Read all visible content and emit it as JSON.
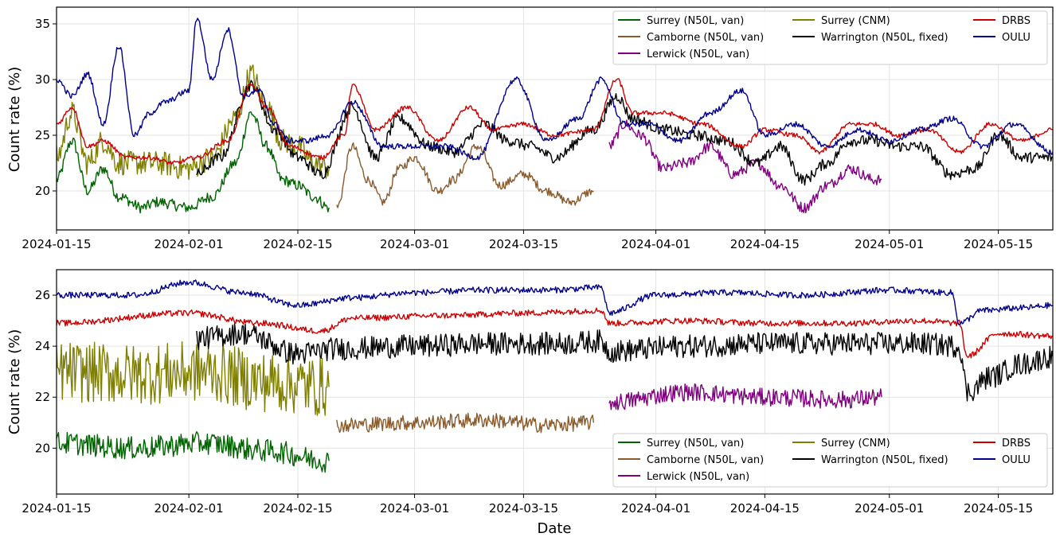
{
  "figure": {
    "xlabel": "Date"
  },
  "chart_data": [
    {
      "type": "line",
      "ylabel": "Count rate (%)",
      "xlim": [
        "2024-01-15",
        "2024-05-22"
      ],
      "ylim": [
        16.5,
        36.5
      ],
      "x_ticks": [
        "2024-01-15",
        "2024-02-01",
        "2024-02-15",
        "2024-03-01",
        "2024-03-15",
        "2024-04-01",
        "2024-04-15",
        "2024-05-01",
        "2024-05-15"
      ],
      "y_ticks": [
        20,
        25,
        30,
        35
      ],
      "grid": true,
      "legend_position": "top-right",
      "series": [
        {
          "name": "Surrey (N50L, van)",
          "color": "#006400",
          "noise": 0.5,
          "x": [
            "2024-01-15",
            "2024-01-17",
            "2024-01-19",
            "2024-01-21",
            "2024-01-23",
            "2024-01-26",
            "2024-01-28",
            "2024-02-01",
            "2024-02-04",
            "2024-02-07",
            "2024-02-09",
            "2024-02-11",
            "2024-02-13",
            "2024-02-15",
            "2024-02-17",
            "2024-02-19"
          ],
          "y": [
            21,
            24.5,
            20,
            22,
            19.5,
            18.5,
            19,
            18.5,
            19.5,
            22.5,
            27,
            24,
            21,
            20.5,
            19.5,
            18.5
          ]
        },
        {
          "name": "Camborne (N50L, van)",
          "color": "#8B5A2B",
          "noise": 0.4,
          "x": [
            "2024-02-20",
            "2024-02-22",
            "2024-02-24",
            "2024-02-26",
            "2024-02-28",
            "2024-03-01",
            "2024-03-04",
            "2024-03-06",
            "2024-03-09",
            "2024-03-12",
            "2024-03-15",
            "2024-03-18",
            "2024-03-21",
            "2024-03-24"
          ],
          "y": [
            18.5,
            24,
            21,
            19,
            22,
            23,
            20,
            21,
            24,
            20.5,
            21.5,
            20,
            19,
            20
          ]
        },
        {
          "name": "Lerwick (N50L, van)",
          "color": "#800080",
          "noise": 0.5,
          "x": [
            "2024-03-26",
            "2024-03-28",
            "2024-03-30",
            "2024-04-02",
            "2024-04-05",
            "2024-04-08",
            "2024-04-11",
            "2024-04-14",
            "2024-04-17",
            "2024-04-20",
            "2024-04-23",
            "2024-04-26",
            "2024-04-29",
            "2024-04-30"
          ],
          "y": [
            24,
            26,
            25,
            22,
            22.5,
            24,
            21.5,
            22.5,
            20.5,
            18.5,
            20.5,
            22,
            21,
            21
          ]
        },
        {
          "name": "Surrey (CNM)",
          "color": "#808000",
          "noise": 1.1,
          "x": [
            "2024-01-15",
            "2024-01-17",
            "2024-01-19",
            "2024-01-21",
            "2024-01-23",
            "2024-01-26",
            "2024-01-28",
            "2024-02-01",
            "2024-02-04",
            "2024-02-07",
            "2024-02-09",
            "2024-02-11",
            "2024-02-13",
            "2024-02-15",
            "2024-02-17",
            "2024-02-19"
          ],
          "y": [
            23,
            27,
            22.5,
            24.5,
            22.5,
            22.5,
            22.5,
            22,
            23,
            26.5,
            30.5,
            27.5,
            24.5,
            24,
            22.5,
            22
          ]
        },
        {
          "name": "Warrington (N50L, fixed)",
          "color": "#000000",
          "noise": 0.5,
          "x": [
            "2024-02-02",
            "2024-02-05",
            "2024-02-09",
            "2024-02-12",
            "2024-02-15",
            "2024-02-18",
            "2024-02-22",
            "2024-02-25",
            "2024-02-28",
            "2024-03-03",
            "2024-03-06",
            "2024-03-10",
            "2024-03-13",
            "2024-03-16",
            "2024-03-19",
            "2024-03-24",
            "2024-03-27",
            "2024-03-29",
            "2024-04-02",
            "2024-04-06",
            "2024-04-10",
            "2024-04-14",
            "2024-04-17",
            "2024-04-20",
            "2024-04-23",
            "2024-04-26",
            "2024-04-29",
            "2024-05-02",
            "2024-05-05",
            "2024-05-09",
            "2024-05-12",
            "2024-05-15",
            "2024-05-18",
            "2024-05-22"
          ],
          "y": [
            21.5,
            23,
            29.5,
            25.5,
            23,
            21.5,
            27.5,
            23,
            26.5,
            24,
            23.5,
            26,
            24.5,
            24,
            23,
            25.5,
            28.5,
            26.5,
            25.5,
            25,
            24.5,
            22.5,
            24,
            21,
            22.5,
            24.5,
            24.5,
            24,
            24,
            21.5,
            22,
            25,
            23,
            23
          ]
        },
        {
          "name": "DRBS",
          "color": "#CC0000",
          "noise": 0.2,
          "x": [
            "2024-01-15",
            "2024-01-17",
            "2024-01-19",
            "2024-01-21",
            "2024-01-24",
            "2024-01-27",
            "2024-01-30",
            "2024-02-02",
            "2024-02-06",
            "2024-02-09",
            "2024-02-11",
            "2024-02-14",
            "2024-02-18",
            "2024-02-21",
            "2024-02-22",
            "2024-02-25",
            "2024-02-29",
            "2024-03-04",
            "2024-03-08",
            "2024-03-11",
            "2024-03-15",
            "2024-03-19",
            "2024-03-24",
            "2024-03-27",
            "2024-03-29",
            "2024-04-02",
            "2024-04-07",
            "2024-04-12",
            "2024-04-15",
            "2024-04-19",
            "2024-04-22",
            "2024-04-26",
            "2024-04-29",
            "2024-05-02",
            "2024-05-06",
            "2024-05-10",
            "2024-05-14",
            "2024-05-18",
            "2024-05-22"
          ],
          "y": [
            26,
            27.5,
            24,
            24.5,
            23,
            23,
            22.5,
            23,
            24.5,
            29.5,
            27.5,
            24,
            23,
            25,
            29.5,
            25.5,
            27.5,
            24.5,
            27.5,
            25.5,
            26,
            25,
            25.5,
            30,
            27,
            27,
            26,
            24,
            25.5,
            25,
            23.5,
            26,
            26,
            25,
            25.5,
            23.5,
            26,
            24.5,
            25.5
          ]
        },
        {
          "name": "OULU",
          "color": "#00008B",
          "noise": 0.25,
          "x": [
            "2024-01-15",
            "2024-01-17",
            "2024-01-19",
            "2024-01-21",
            "2024-01-23",
            "2024-01-25",
            "2024-01-27",
            "2024-01-29",
            "2024-02-01",
            "2024-02-02",
            "2024-02-04",
            "2024-02-06",
            "2024-02-08",
            "2024-02-10",
            "2024-02-12",
            "2024-02-14",
            "2024-02-16",
            "2024-02-19",
            "2024-02-22",
            "2024-02-26",
            "2024-03-01",
            "2024-03-05",
            "2024-03-09",
            "2024-03-14",
            "2024-03-18",
            "2024-03-22",
            "2024-03-25",
            "2024-03-28",
            "2024-03-31",
            "2024-04-04",
            "2024-04-08",
            "2024-04-12",
            "2024-04-15",
            "2024-04-19",
            "2024-04-23",
            "2024-04-27",
            "2024-05-01",
            "2024-05-05",
            "2024-05-09",
            "2024-05-13",
            "2024-05-17",
            "2024-05-22"
          ],
          "y": [
            30,
            28.5,
            30.5,
            26,
            33,
            25,
            27,
            28,
            29,
            35.5,
            30,
            34.5,
            28.5,
            29,
            26,
            24.5,
            24.5,
            25,
            28,
            24,
            24,
            24,
            23,
            30,
            24.5,
            26.5,
            30,
            26,
            26,
            24.5,
            27,
            29,
            25,
            26,
            24,
            25.5,
            24.5,
            25.5,
            26.5,
            24,
            26,
            23.5
          ]
        }
      ]
    },
    {
      "type": "line",
      "ylabel": "Count rate (%)",
      "xlim": [
        "2024-01-15",
        "2024-05-22"
      ],
      "ylim": [
        18.2,
        27.0
      ],
      "x_ticks": [
        "2024-01-15",
        "2024-02-01",
        "2024-02-15",
        "2024-03-01",
        "2024-03-15",
        "2024-04-01",
        "2024-04-15",
        "2024-05-01",
        "2024-05-15"
      ],
      "y_ticks": [
        20,
        22,
        24,
        26
      ],
      "grid": true,
      "legend_position": "bottom-right",
      "series": [
        {
          "name": "Surrey (N50L, van)",
          "color": "#006400",
          "noise": 0.45,
          "x": [
            "2024-01-15",
            "2024-01-25",
            "2024-02-03",
            "2024-02-11",
            "2024-02-19"
          ],
          "y": [
            20.2,
            20.0,
            20.2,
            19.9,
            19.5
          ]
        },
        {
          "name": "Camborne (N50L, van)",
          "color": "#8B5A2B",
          "noise": 0.3,
          "x": [
            "2024-02-20",
            "2024-03-01",
            "2024-03-10",
            "2024-03-18",
            "2024-03-24"
          ],
          "y": [
            20.9,
            21.0,
            21.1,
            20.9,
            21.0
          ]
        },
        {
          "name": "Lerwick (N50L, van)",
          "color": "#800080",
          "noise": 0.35,
          "x": [
            "2024-03-26",
            "2024-04-05",
            "2024-04-15",
            "2024-04-25",
            "2024-04-30"
          ],
          "y": [
            21.8,
            22.2,
            22.0,
            21.9,
            22.0
          ]
        },
        {
          "name": "Surrey (CNM)",
          "color": "#808000",
          "noise": 1.2,
          "x": [
            "2024-01-15",
            "2024-01-25",
            "2024-02-03",
            "2024-02-11",
            "2024-02-19"
          ],
          "y": [
            23.0,
            22.9,
            23.0,
            22.6,
            22.4
          ]
        },
        {
          "name": "Warrington (N50L, fixed)",
          "color": "#000000",
          "noise": 0.45,
          "x": [
            "2024-02-02",
            "2024-02-08",
            "2024-02-15",
            "2024-02-20",
            "2024-03-01",
            "2024-03-10",
            "2024-03-20",
            "2024-03-25",
            "2024-03-26",
            "2024-04-05",
            "2024-04-15",
            "2024-04-25",
            "2024-05-05",
            "2024-05-10",
            "2024-05-11",
            "2024-05-14",
            "2024-05-18",
            "2024-05-22"
          ],
          "y": [
            24.3,
            24.5,
            23.7,
            23.9,
            24.0,
            24.1,
            24.1,
            24.2,
            23.8,
            24.0,
            24.1,
            24.1,
            24.1,
            24.0,
            22.2,
            22.8,
            23.3,
            23.6
          ]
        },
        {
          "name": "DRBS",
          "color": "#CC0000",
          "noise": 0.12,
          "x": [
            "2024-01-15",
            "2024-02-01",
            "2024-02-10",
            "2024-02-18",
            "2024-02-22",
            "2024-03-05",
            "2024-03-15",
            "2024-03-25",
            "2024-03-26",
            "2024-04-05",
            "2024-04-15",
            "2024-04-25",
            "2024-05-05",
            "2024-05-10",
            "2024-05-11",
            "2024-05-15",
            "2024-05-22"
          ],
          "y": [
            24.9,
            25.3,
            24.9,
            24.6,
            25.1,
            25.2,
            25.3,
            25.4,
            24.9,
            25.0,
            24.9,
            24.9,
            25.0,
            24.9,
            23.6,
            24.5,
            24.4
          ]
        },
        {
          "name": "OULU",
          "color": "#00008B",
          "noise": 0.12,
          "x": [
            "2024-01-15",
            "2024-01-25",
            "2024-02-01",
            "2024-02-08",
            "2024-02-15",
            "2024-02-22",
            "2024-03-01",
            "2024-03-10",
            "2024-03-18",
            "2024-03-25",
            "2024-03-26",
            "2024-04-01",
            "2024-04-10",
            "2024-04-20",
            "2024-05-01",
            "2024-05-09",
            "2024-05-10",
            "2024-05-13",
            "2024-05-18",
            "2024-05-22"
          ],
          "y": [
            26.0,
            26.0,
            26.5,
            26.1,
            25.6,
            25.9,
            26.1,
            26.2,
            26.2,
            26.3,
            25.3,
            26.0,
            26.1,
            26.0,
            26.2,
            26.1,
            24.9,
            25.4,
            25.5,
            25.6
          ]
        }
      ]
    }
  ]
}
